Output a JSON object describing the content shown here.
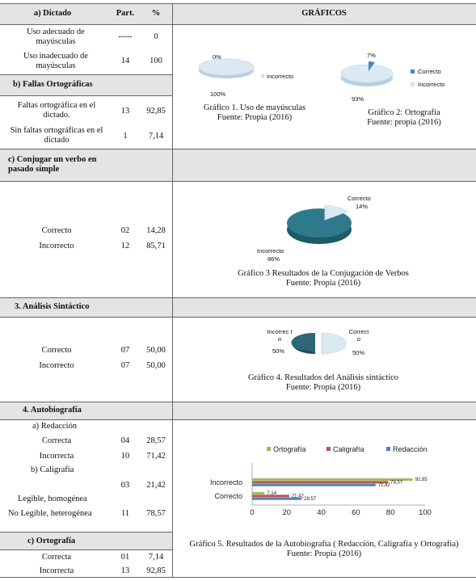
{
  "header": {
    "col_a": "a) Dictado",
    "col_part": "Part.",
    "col_pct": "%",
    "col_graf": "GRÁFICOS"
  },
  "sections": {
    "dictado": {
      "rows": [
        {
          "label": "Uso adecuado de mayúsculas",
          "part": "-----",
          "pct": "0"
        },
        {
          "label": "Uso inadecuado de mayúsculas",
          "part": "14",
          "pct": "100"
        }
      ]
    },
    "fallas": {
      "title": "b) Fallas Ortográficas",
      "rows": [
        {
          "label": "Faltas ortográfica en el dictado.",
          "part": "13",
          "pct": "92,85"
        },
        {
          "label": "Sin faltas ortográficas en el dictado",
          "part": "1",
          "pct": "7,14"
        }
      ]
    },
    "conjugar": {
      "title": "c) Conjugar un verbo en pasado simple",
      "rows": [
        {
          "label": "Correcto",
          "part": "02",
          "pct": "14,28"
        },
        {
          "label": "Incorrecto",
          "part": "12",
          "pct": "85,71"
        }
      ]
    },
    "sintactico": {
      "title": "3. Análisis Sintáctico",
      "rows": [
        {
          "label": "Correcto",
          "part": "07",
          "pct": "50,00"
        },
        {
          "label": "Incorrecto",
          "part": "07",
          "pct": "50,00"
        }
      ]
    },
    "autobiografia": {
      "title": "4. Autobiografía",
      "redaccion": "a) Redacción",
      "caligrafia": "b)  Caligrafía",
      "rows_red": [
        {
          "label": "Correcta",
          "part": "04",
          "pct": "28,57"
        },
        {
          "label": "Incorrecta",
          "part": "10",
          "pct": "71,42"
        }
      ],
      "rows_cal": [
        {
          "label": "Legible, homogénea",
          "part": "03",
          "pct": "21,42"
        },
        {
          "label": "No Legible, heterogénea",
          "part": "11",
          "pct": "78,57"
        }
      ]
    },
    "ortografia": {
      "title": "c) Ortografía",
      "rows": [
        {
          "label": "Correcta",
          "part": "01",
          "pct": "7,14"
        },
        {
          "label": "Incorrecta",
          "part": "13",
          "pct": "92,85"
        }
      ]
    }
  },
  "captions": {
    "g1": [
      "Gráfico 1. Uso de mayúsculas",
      "Fuente: Propia (2016)"
    ],
    "g2": [
      "Gráfico 2: Ortografía",
      "Fuente: propia (2016)"
    ],
    "g3": [
      "Gráfico 3  Resultados de la Conjugación de Verbos",
      "Fuente: Propia (2016)"
    ],
    "g4": [
      "Gráfico 4. Resultados del Análisis sintáctico",
      "Fuente: Propia (2016)"
    ],
    "g5": [
      "Gráfico 5.  Resultados de la Autobiografía ( Redacción, Caligrafía y Ortografía)",
      "Fuente: Propia (2016)"
    ]
  },
  "chart_data": [
    {
      "type": "pie",
      "labels": [
        "",
        "Incorrecto"
      ],
      "values": [
        0,
        100
      ],
      "value_labels": [
        "0%",
        "100%"
      ],
      "legend": [
        "Incorrecto"
      ],
      "colors": [
        "#4f81bd",
        "#dbe9f3"
      ]
    },
    {
      "type": "pie",
      "labels": [
        "Correcto",
        "Incorrecto"
      ],
      "values": [
        7,
        93
      ],
      "value_labels": [
        "7%",
        "93%"
      ],
      "legend": [
        "Correcto",
        "Incorrecto"
      ],
      "colors": [
        "#4f81bd",
        "#dbe9f3"
      ]
    },
    {
      "type": "pie",
      "labels": [
        "Correcto",
        "Incorrecto"
      ],
      "values": [
        14,
        86
      ],
      "value_labels": [
        "14%",
        "86%"
      ],
      "colors": [
        "#dbe9f3",
        "#2e7a8c"
      ]
    },
    {
      "type": "pie",
      "labels": [
        "Incorrec to",
        "Correct o"
      ],
      "values": [
        50,
        50
      ],
      "value_labels": [
        "50%",
        "50%"
      ],
      "colors": [
        "#2e6878",
        "#dbe9f3"
      ]
    },
    {
      "type": "bar",
      "orientation": "horizontal",
      "categories": [
        "Correcto",
        "Incorrecto"
      ],
      "series": [
        {
          "name": "Ortografía",
          "values": [
            7.14,
            92.85
          ],
          "labels": [
            "7,14",
            "92,85"
          ],
          "color": "#9bbb59"
        },
        {
          "name": "Caligrafía",
          "values": [
            21.42,
            78.57
          ],
          "labels": [
            "21,42",
            "78,57"
          ],
          "color": "#c0504d"
        },
        {
          "name": "Redacción",
          "values": [
            28.57,
            71.42
          ],
          "labels": [
            "28,57",
            "71,42"
          ],
          "color": "#4f81bd"
        }
      ],
      "xlim": [
        0,
        100
      ],
      "xticks": [
        "0",
        "20",
        "40",
        "60",
        "80",
        "100"
      ],
      "legend_position": "top"
    }
  ]
}
